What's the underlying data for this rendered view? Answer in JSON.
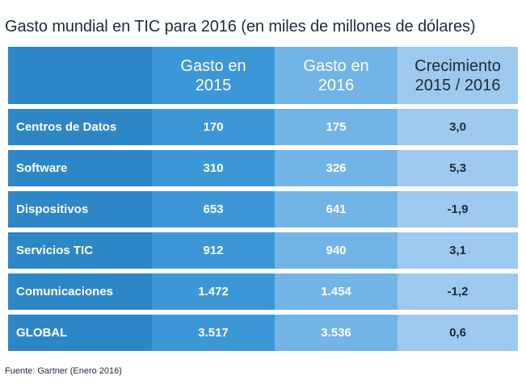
{
  "title": "Gasto mundial en TIC para 2016 (en miles de millones de dólares)",
  "header": {
    "col1": "Gasto en\n2015",
    "col2": "Gasto en\n2016",
    "col3": "Crecimiento\n2015 / 2016"
  },
  "rows": [
    {
      "label": "Centros de Datos",
      "v2015": "170",
      "v2016": "175",
      "growth": "3,0"
    },
    {
      "label": "Software",
      "v2015": "310",
      "v2016": "326",
      "growth": "5,3"
    },
    {
      "label": "Dispositivos",
      "v2015": "653",
      "v2016": "641",
      "growth": "-1,9"
    },
    {
      "label": "Servicios TIC",
      "v2015": "912",
      "v2016": "940",
      "growth": "3,1"
    },
    {
      "label": "Comunicaciones",
      "v2015": "1.472",
      "v2016": "1.454",
      "growth": "-1,2"
    },
    {
      "label": "GLOBAL",
      "v2015": "3.517",
      "v2016": "3.536",
      "growth": "0,6"
    }
  ],
  "source": "Fuente: Gartner (Enero 2016)",
  "colors": {
    "col_label_bg": "#2d86c5",
    "col_2015_bg": "#3d97d6",
    "col_2016_bg": "#72b4e6",
    "col_growth_bg": "#9ec9ee"
  },
  "chart_data": {
    "type": "table",
    "title": "Gasto mundial en TIC para 2016 (en miles de millones de dólares)",
    "columns": [
      "",
      "Gasto en 2015",
      "Gasto en 2016",
      "Crecimiento 2015 / 2016"
    ],
    "categories": [
      "Centros de Datos",
      "Software",
      "Dispositivos",
      "Servicios TIC",
      "Comunicaciones",
      "GLOBAL"
    ],
    "series": [
      {
        "name": "Gasto en 2015",
        "values": [
          170,
          310,
          653,
          912,
          1472,
          3517
        ]
      },
      {
        "name": "Gasto en 2016",
        "values": [
          175,
          326,
          641,
          940,
          1454,
          3536
        ]
      },
      {
        "name": "Crecimiento 2015 / 2016",
        "values": [
          3.0,
          5.3,
          -1.9,
          3.1,
          -1.2,
          0.6
        ]
      }
    ]
  }
}
